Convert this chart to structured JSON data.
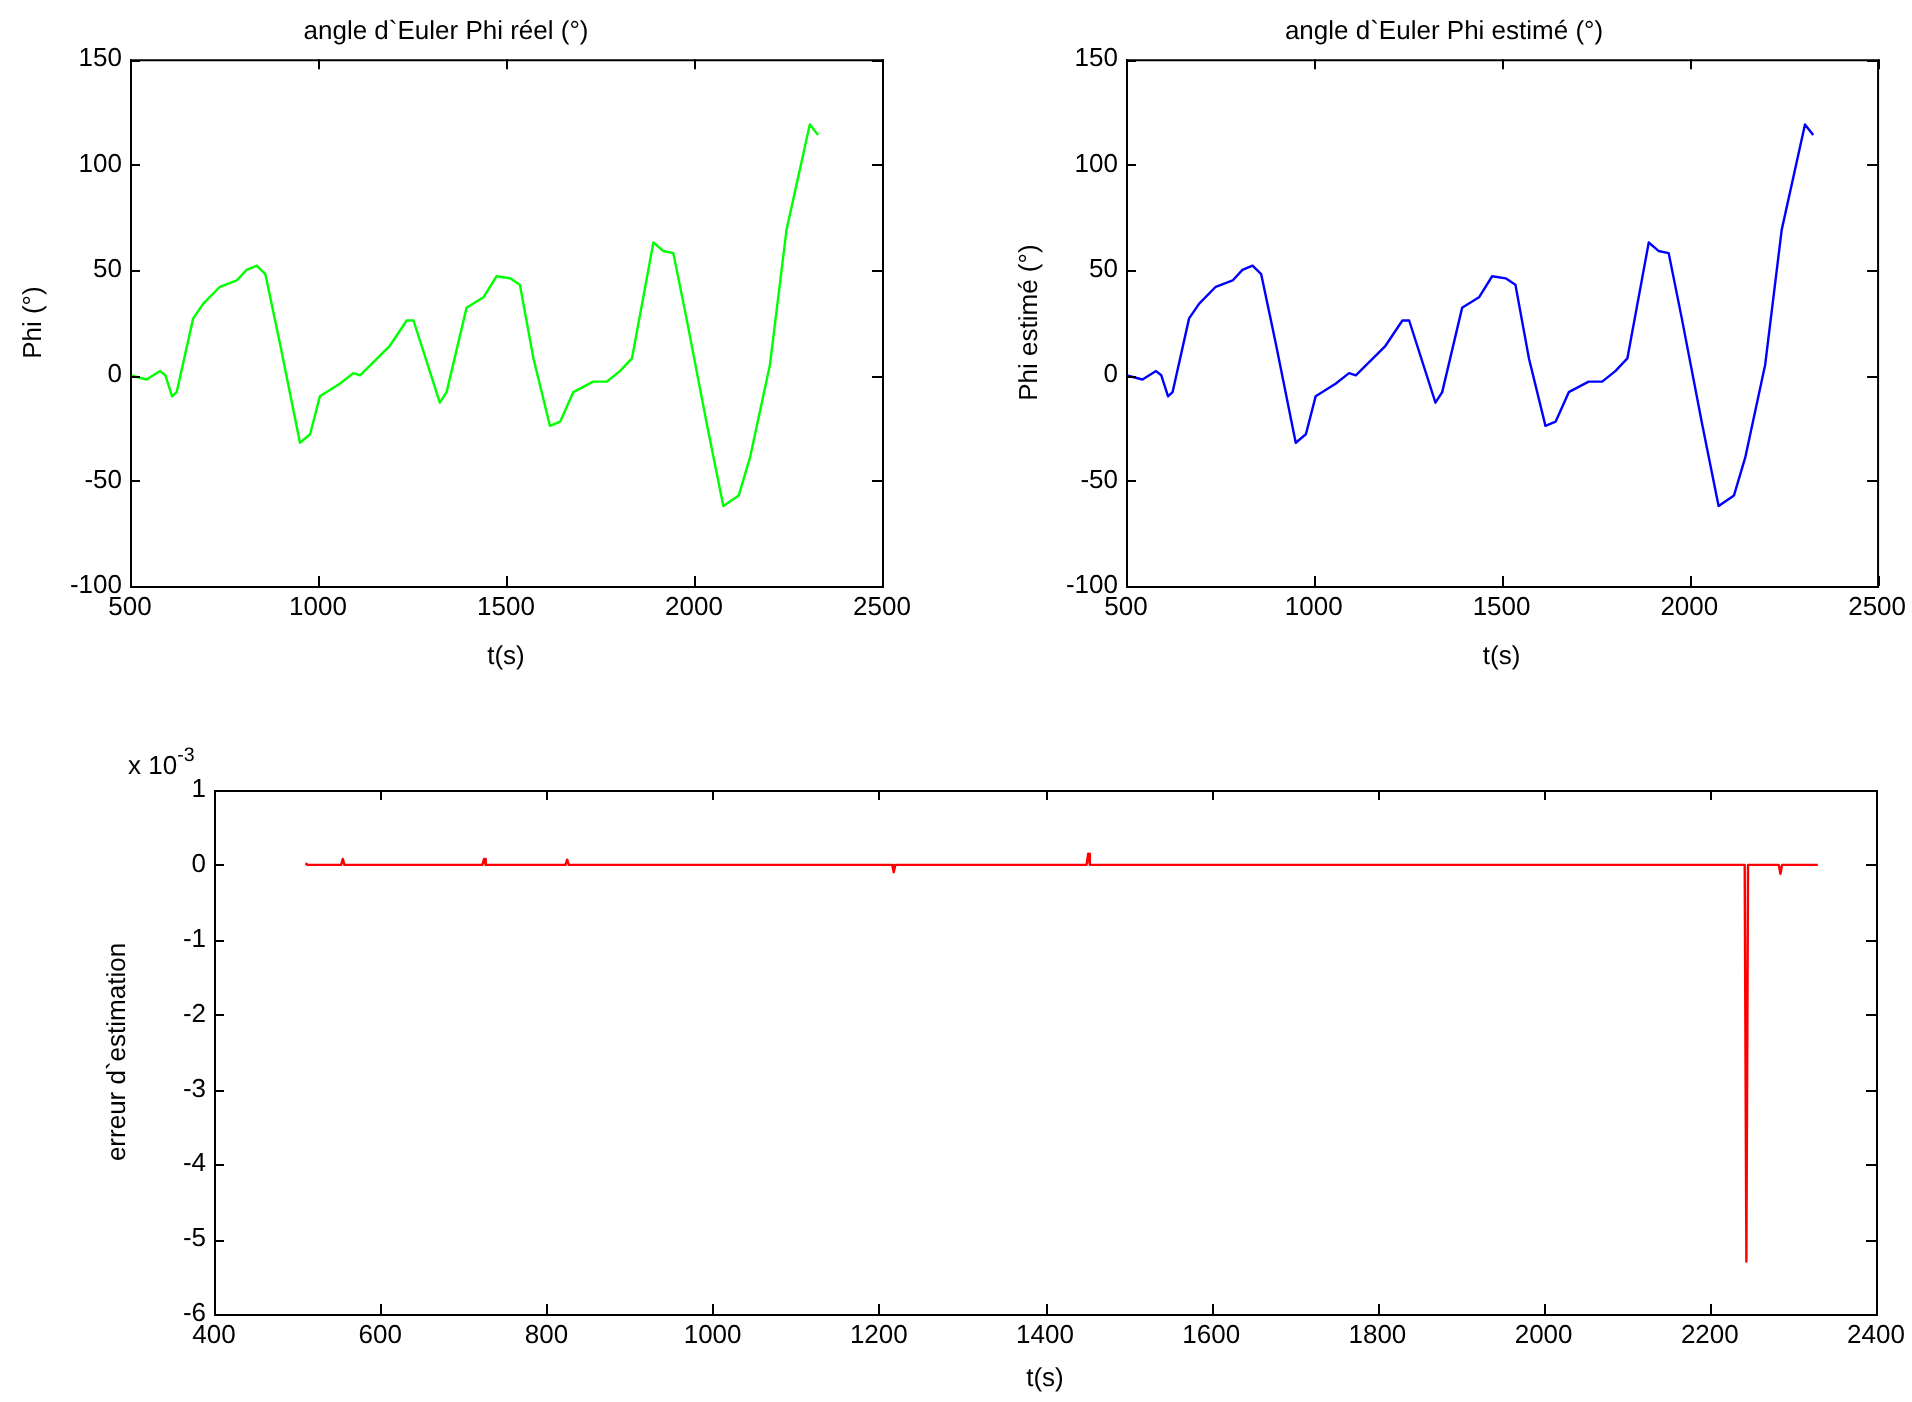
{
  "chart_data": [
    {
      "type": "line",
      "title": "angle d`Euler Phi réel (°)",
      "xlabel": "t(s)",
      "ylabel": "Phi (°)",
      "xlim": [
        500,
        2500
      ],
      "ylim": [
        -100,
        150
      ],
      "xticks": [
        500,
        1000,
        1500,
        2000,
        2500
      ],
      "yticks": [
        -100,
        -50,
        0,
        50,
        100,
        150
      ],
      "x": [
        500,
        544,
        580,
        594,
        612,
        624,
        668,
        695,
        739,
        784,
        810,
        837,
        860,
        899,
        952,
        979,
        1005,
        1058,
        1094,
        1112,
        1191,
        1236,
        1254,
        1324,
        1342,
        1395,
        1440,
        1475,
        1511,
        1537,
        1573,
        1617,
        1644,
        1679,
        1732,
        1768,
        1803,
        1835,
        1892,
        1918,
        1945,
        1980,
        2034,
        2078,
        2119,
        2149,
        2202,
        2246,
        2308,
        2330
      ],
      "series": [
        {
          "color": "#00ff00",
          "values": [
            0,
            -2,
            2,
            0,
            -10,
            -8,
            27,
            34,
            42,
            45,
            50,
            52,
            48,
            15,
            -32,
            -28,
            -10,
            -4,
            1,
            0,
            14,
            26,
            26,
            -13,
            -8,
            32,
            37,
            47,
            46,
            43,
            8,
            -24,
            -22,
            -8,
            -3,
            -3,
            2,
            8,
            63,
            59,
            58,
            27,
            -23,
            -62,
            -57,
            -39,
            5,
            69,
            119,
            114
          ]
        }
      ]
    },
    {
      "type": "line",
      "title": "angle d`Euler Phi estimé (°)",
      "xlabel": "t(s)",
      "ylabel": "Phi estimé (°)",
      "xlim": [
        500,
        2500
      ],
      "ylim": [
        -100,
        150
      ],
      "xticks": [
        500,
        1000,
        1500,
        2000,
        2500
      ],
      "yticks": [
        -100,
        -50,
        0,
        50,
        100,
        150
      ],
      "x": [
        500,
        544,
        580,
        594,
        612,
        624,
        668,
        695,
        739,
        784,
        810,
        837,
        860,
        899,
        952,
        979,
        1005,
        1058,
        1094,
        1112,
        1191,
        1236,
        1254,
        1324,
        1342,
        1395,
        1440,
        1475,
        1511,
        1537,
        1573,
        1617,
        1644,
        1679,
        1732,
        1768,
        1803,
        1835,
        1892,
        1918,
        1945,
        1980,
        2034,
        2078,
        2119,
        2149,
        2202,
        2246,
        2308,
        2330
      ],
      "series": [
        {
          "color": "#0000ff",
          "values": [
            0,
            -2,
            2,
            0,
            -10,
            -8,
            27,
            34,
            42,
            45,
            50,
            52,
            48,
            15,
            -32,
            -28,
            -10,
            -4,
            1,
            0,
            14,
            26,
            26,
            -13,
            -8,
            32,
            37,
            47,
            46,
            43,
            8,
            -24,
            -22,
            -8,
            -3,
            -3,
            2,
            8,
            63,
            59,
            58,
            27,
            -23,
            -62,
            -57,
            -39,
            5,
            69,
            119,
            114
          ]
        }
      ]
    },
    {
      "type": "line",
      "xlabel": "t(s)",
      "ylabel": "erreur d`estimation",
      "annotations": [
        "x 10$^{-3}$"
      ],
      "xlim": [
        400,
        2400
      ],
      "ylim": [
        -6,
        1
      ],
      "xticks": [
        400,
        600,
        800,
        1000,
        1200,
        1400,
        1600,
        1800,
        2000,
        2200,
        2400
      ],
      "yticks": [
        -6,
        -5,
        -4,
        -3,
        -2,
        -1,
        0,
        1
      ],
      "x": [
        510,
        513,
        553,
        555,
        557,
        723,
        725,
        727,
        823,
        825,
        827,
        1216,
        1218,
        1220,
        1450,
        1452,
        1454,
        2242,
        2244,
        2246,
        2283,
        2285,
        2287,
        2330
      ],
      "series": [
        {
          "color": "#ff0000",
          "values": [
            0.02,
            0,
            0,
            0.08,
            0,
            0,
            0.08,
            0,
            0,
            0.07,
            0,
            0,
            -0.1,
            0,
            0,
            0.15,
            0,
            0,
            -5.3,
            0,
            0,
            -0.12,
            0,
            0
          ]
        }
      ]
    }
  ]
}
